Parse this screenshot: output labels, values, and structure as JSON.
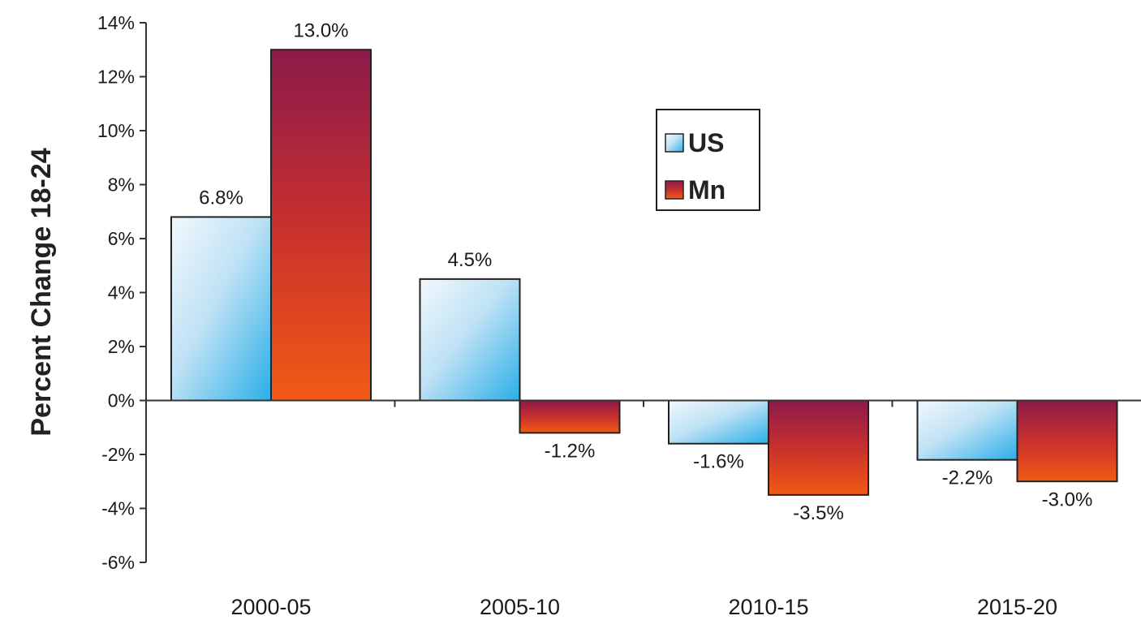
{
  "chart_data": {
    "type": "bar",
    "title": "",
    "xlabel": "",
    "ylabel": "Percent Change 18-24",
    "categories": [
      "2000-05",
      "2005-10",
      "2010-15",
      "2015-20"
    ],
    "series": [
      {
        "name": "US",
        "values": [
          6.8,
          4.5,
          -1.6,
          -2.2
        ],
        "labels": [
          "6.8%",
          "4.5%",
          "-1.6%",
          "-2.2%"
        ]
      },
      {
        "name": "Mn",
        "values": [
          13.0,
          -1.2,
          -3.5,
          -3.0
        ],
        "labels": [
          "13.0%",
          "-1.2%",
          "-3.5%",
          "-3.0%"
        ]
      }
    ],
    "ylim": [
      -6,
      14
    ],
    "yticks": [
      14,
      12,
      10,
      8,
      6,
      4,
      2,
      0,
      -2,
      -4,
      -6
    ],
    "ytick_labels": [
      "14%",
      "12%",
      "10%",
      "8%",
      "6%",
      "4%",
      "2%",
      "0%",
      "-2%",
      "-4%",
      "-6%"
    ],
    "grid": false,
    "legend_position": "top-right",
    "colors": {
      "US_light": "#f2f8fc",
      "US_dark": "#2aaee8",
      "Mn_top": "#8c1a4a",
      "Mn_bottom": "#f25a14"
    }
  }
}
